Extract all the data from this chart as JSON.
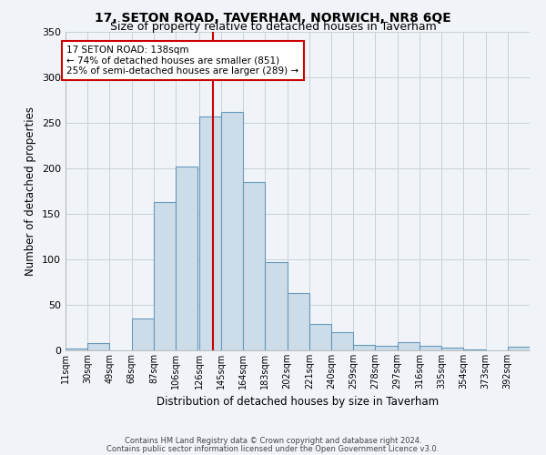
{
  "title1": "17, SETON ROAD, TAVERHAM, NORWICH, NR8 6QE",
  "title2": "Size of property relative to detached houses in Taverham",
  "xlabel": "Distribution of detached houses by size in Taverham",
  "ylabel": "Number of detached properties",
  "footer1": "Contains HM Land Registry data © Crown copyright and database right 2024.",
  "footer2": "Contains public sector information licensed under the Open Government Licence v3.0.",
  "annotation_title": "17 SETON ROAD: 138sqm",
  "annotation_line1": "← 74% of detached houses are smaller (851)",
  "annotation_line2": "25% of semi-detached houses are larger (289) →",
  "bar_color": "#ccdce8",
  "bar_edge_color": "#6699bb",
  "vline_color": "#cc0000",
  "vline_x": 138,
  "categories": [
    "11sqm",
    "30sqm",
    "49sqm",
    "68sqm",
    "87sqm",
    "106sqm",
    "126sqm",
    "145sqm",
    "164sqm",
    "183sqm",
    "202sqm",
    "221sqm",
    "240sqm",
    "259sqm",
    "278sqm",
    "297sqm",
    "316sqm",
    "335sqm",
    "354sqm",
    "373sqm",
    "392sqm"
  ],
  "bin_edges": [
    11,
    30,
    49,
    68,
    87,
    106,
    126,
    145,
    164,
    183,
    202,
    221,
    240,
    259,
    278,
    297,
    316,
    335,
    354,
    373,
    392
  ],
  "bin_width": 19,
  "values": [
    2,
    8,
    0,
    35,
    163,
    202,
    257,
    262,
    185,
    97,
    63,
    29,
    20,
    6,
    5,
    9,
    5,
    3,
    1,
    0,
    4
  ],
  "ylim": [
    0,
    350
  ],
  "yticks": [
    0,
    50,
    100,
    150,
    200,
    250,
    300,
    350
  ],
  "background_color": "#f0f4f8",
  "grid_color": "#c8d0d8",
  "title1_fontsize": 10,
  "title2_fontsize": 9
}
